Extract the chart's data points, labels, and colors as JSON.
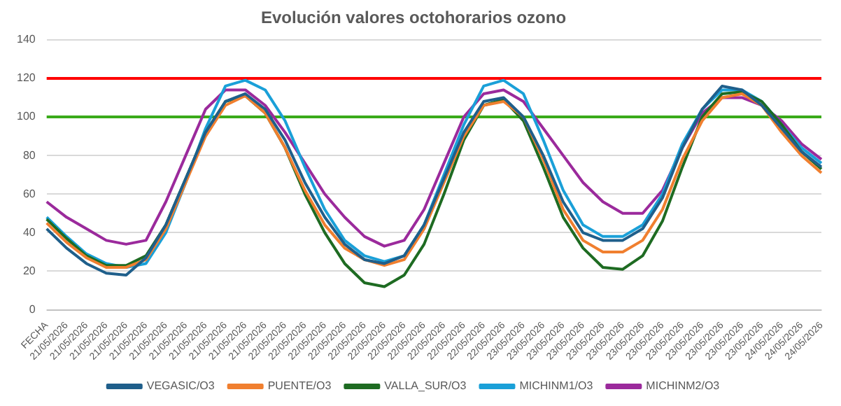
{
  "chart_data": {
    "type": "line",
    "title": "Evolución valores octohorarios ozono",
    "categories": [
      "FECHA",
      "21/05/2026",
      "21/05/2026",
      "21/05/2026",
      "21/05/2026",
      "21/05/2026",
      "21/05/2026",
      "21/05/2026",
      "21/05/2026",
      "21/05/2026",
      "21/05/2026",
      "21/05/2026",
      "22/05/2026",
      "22/05/2026",
      "22/05/2026",
      "22/05/2026",
      "22/05/2026",
      "22/05/2026",
      "22/05/2026",
      "22/05/2026",
      "22/05/2026",
      "22/05/2026",
      "22/05/2026",
      "22/05/2026",
      "23/05/2026",
      "23/05/2026",
      "23/05/2026",
      "23/05/2026",
      "23/05/2026",
      "23/05/2026",
      "23/05/2026",
      "23/05/2026",
      "23/05/2026",
      "23/05/2026",
      "23/05/2026",
      "23/05/2026",
      "23/05/2026",
      "24/05/2026",
      "24/05/2026",
      "24/05/2026"
    ],
    "series": [
      {
        "name": "VEGASIC/O3",
        "color": "#1f5f8b",
        "values": [
          42,
          32,
          24,
          19,
          18,
          27,
          44,
          68,
          92,
          108,
          112,
          104,
          88,
          66,
          48,
          34,
          26,
          24,
          28,
          44,
          68,
          92,
          108,
          110,
          100,
          80,
          56,
          40,
          36,
          36,
          42,
          58,
          84,
          104,
          116,
          114,
          106,
          94,
          82,
          74
        ]
      },
      {
        "name": "PUENTE/O3",
        "color": "#f07f2f",
        "values": [
          45,
          35,
          27,
          22,
          22,
          26,
          42,
          66,
          90,
          106,
          111,
          102,
          84,
          62,
          44,
          32,
          26,
          23,
          26,
          42,
          66,
          90,
          106,
          108,
          100,
          78,
          52,
          36,
          30,
          30,
          36,
          52,
          78,
          98,
          110,
          112,
          106,
          92,
          80,
          71
        ]
      },
      {
        "name": "VALLA_SUR/O3",
        "color": "#1e6b22",
        "values": [
          47,
          37,
          28,
          23,
          23,
          28,
          44,
          68,
          92,
          108,
          111,
          102,
          84,
          60,
          40,
          24,
          14,
          12,
          18,
          34,
          60,
          88,
          106,
          109,
          98,
          74,
          48,
          32,
          22,
          21,
          28,
          46,
          74,
          100,
          112,
          113,
          108,
          96,
          82,
          73
        ]
      },
      {
        "name": "MICHINM1/O3",
        "color": "#1aa0d8",
        "values": [
          48,
          38,
          29,
          24,
          22,
          24,
          40,
          66,
          94,
          116,
          119,
          114,
          98,
          74,
          52,
          36,
          28,
          25,
          28,
          44,
          70,
          96,
          116,
          119,
          112,
          88,
          62,
          44,
          38,
          38,
          44,
          60,
          86,
          104,
          114,
          114,
          108,
          96,
          84,
          76
        ]
      },
      {
        "name": "MICHINM2/O3",
        "color": "#9b2a9c",
        "values": [
          56,
          48,
          42,
          36,
          34,
          36,
          56,
          80,
          104,
          114,
          114,
          106,
          92,
          76,
          60,
          48,
          38,
          33,
          36,
          52,
          76,
          100,
          112,
          114,
          108,
          94,
          80,
          66,
          56,
          50,
          50,
          62,
          84,
          102,
          110,
          110,
          106,
          98,
          86,
          78
        ]
      }
    ],
    "ylim": [
      0,
      140
    ],
    "yticks": [
      0,
      20,
      40,
      60,
      80,
      100,
      120,
      140
    ],
    "ref_lines": [
      {
        "axis": "y",
        "value": 120,
        "color": "#ff0000"
      },
      {
        "axis": "y",
        "value": 100,
        "color": "#3aaa1a"
      }
    ],
    "grid": "y",
    "legend": "bottom",
    "marker": "none",
    "line_style": "solid"
  }
}
